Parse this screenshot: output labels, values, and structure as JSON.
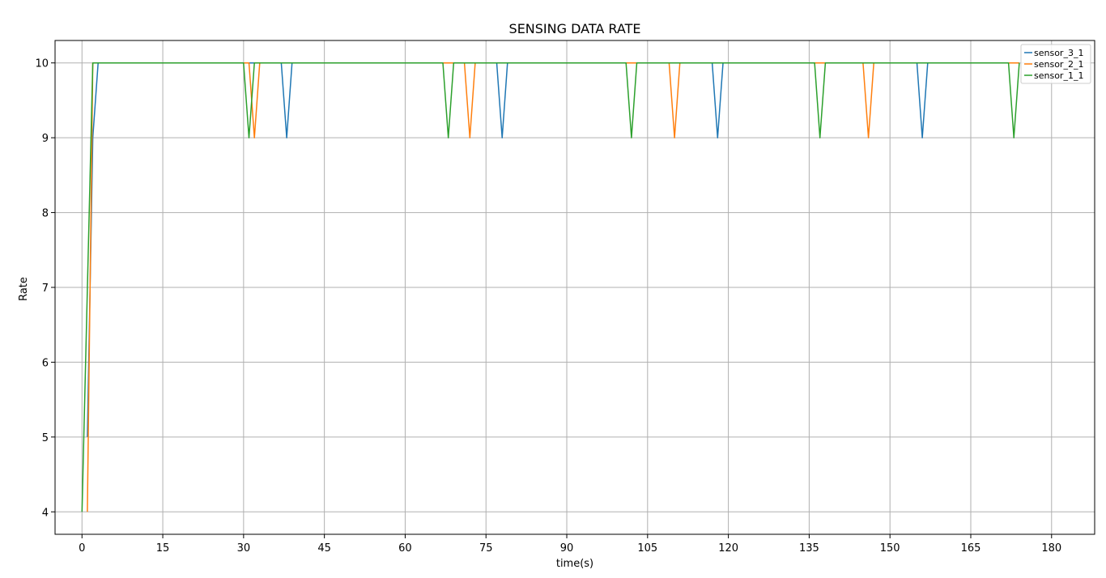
{
  "chart_data": {
    "type": "line",
    "title": "SENSING DATA RATE",
    "xlabel": "time(s)",
    "ylabel": "Rate",
    "xlim": [
      -5,
      188
    ],
    "ylim": [
      3.7,
      10.3
    ],
    "xticks": [
      0,
      15,
      30,
      45,
      60,
      75,
      90,
      105,
      120,
      135,
      150,
      165,
      180
    ],
    "yticks": [
      4,
      5,
      6,
      7,
      8,
      9,
      10
    ],
    "grid": true,
    "legend_position": "top-right",
    "series": [
      {
        "name": "sensor_3_1",
        "color": "#1f77b4",
        "points": [
          [
            1,
            5
          ],
          [
            2,
            9
          ],
          [
            3,
            10
          ],
          [
            37,
            10
          ],
          [
            38,
            9
          ],
          [
            39,
            10
          ],
          [
            77,
            10
          ],
          [
            78,
            9
          ],
          [
            79,
            10
          ],
          [
            117,
            10
          ],
          [
            118,
            9
          ],
          [
            119,
            10
          ],
          [
            155,
            10
          ],
          [
            156,
            9
          ],
          [
            157,
            10
          ],
          [
            174,
            10
          ]
        ]
      },
      {
        "name": "sensor_2_1",
        "color": "#ff7f0e",
        "points": [
          [
            1,
            4
          ],
          [
            2,
            10
          ],
          [
            31,
            10
          ],
          [
            32,
            9
          ],
          [
            33,
            10
          ],
          [
            71,
            10
          ],
          [
            72,
            9
          ],
          [
            73,
            10
          ],
          [
            109,
            10
          ],
          [
            110,
            9
          ],
          [
            111,
            10
          ],
          [
            145,
            10
          ],
          [
            146,
            9
          ],
          [
            147,
            10
          ],
          [
            174,
            10
          ]
        ]
      },
      {
        "name": "sensor_1_1",
        "color": "#2ca02c",
        "points": [
          [
            0,
            4
          ],
          [
            2,
            10
          ],
          [
            30,
            10
          ],
          [
            31,
            9
          ],
          [
            32,
            10
          ],
          [
            67,
            10
          ],
          [
            68,
            9
          ],
          [
            69,
            10
          ],
          [
            101,
            10
          ],
          [
            102,
            9
          ],
          [
            103,
            10
          ],
          [
            136,
            10
          ],
          [
            137,
            9
          ],
          [
            138,
            10
          ],
          [
            172,
            10
          ],
          [
            173,
            9
          ],
          [
            174,
            10
          ]
        ]
      }
    ]
  }
}
